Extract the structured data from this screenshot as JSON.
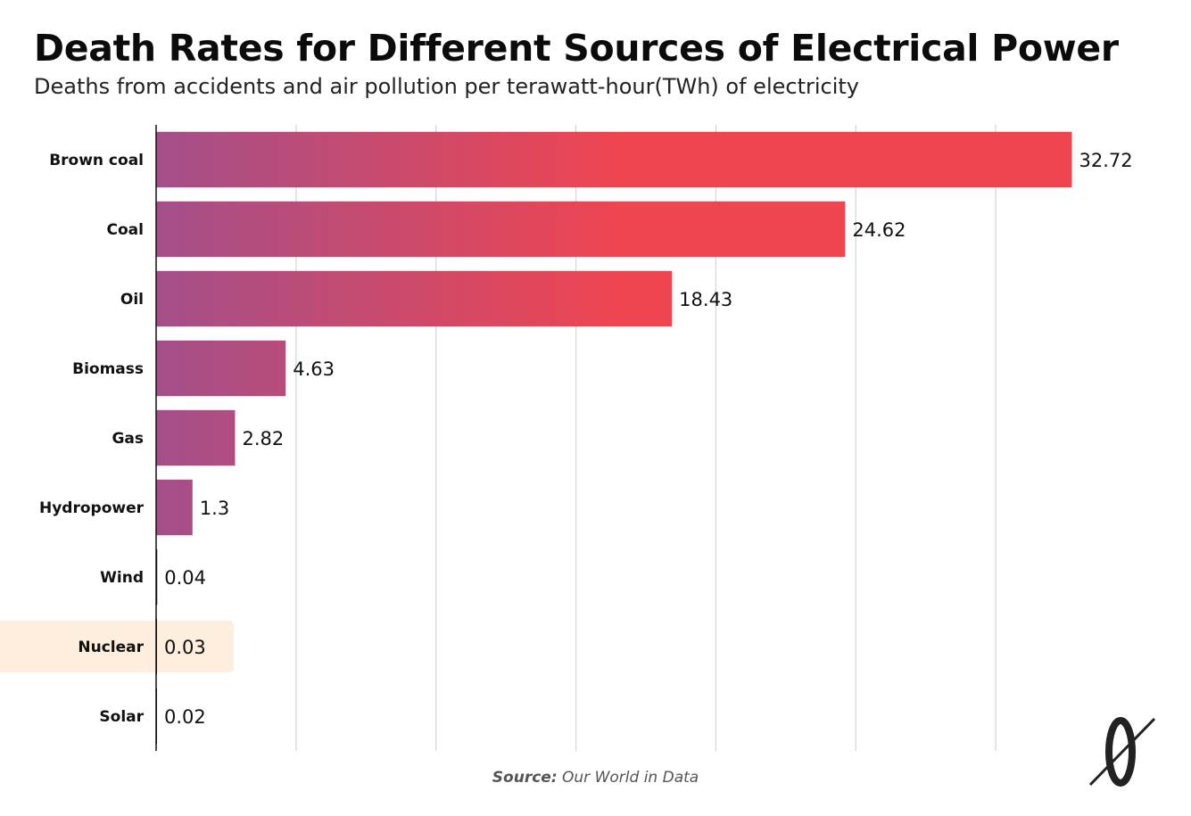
{
  "header": {
    "title": "Death Rates for Different Sources of Electrical Power",
    "subtitle": "Deaths from accidents and air pollution per terawatt-hour(TWh) of electricity"
  },
  "footer": {
    "source_label": "Source:",
    "source_text": "Our World in Data"
  },
  "logo": {
    "glyph": "0"
  },
  "colors": {
    "bar_start": "#a44f8a",
    "bar_end": "#ef4550",
    "highlight_bg": "#fdeedd",
    "gridline": "#d4d4d4",
    "axis": "#111111"
  },
  "chart_data": {
    "type": "bar",
    "orientation": "horizontal",
    "title": "Death Rates for Different Sources of Electrical Power",
    "subtitle": "Deaths from accidents and air pollution per terawatt-hour(TWh) of electricity",
    "categories": [
      "Brown coal",
      "Coal",
      "Oil",
      "Biomass",
      "Gas",
      "Hydropower",
      "Wind",
      "Nuclear",
      "Solar"
    ],
    "values": [
      32.72,
      24.62,
      18.43,
      4.63,
      2.82,
      1.3,
      0.04,
      0.03,
      0.02
    ],
    "value_labels": [
      "32.72",
      "24.62",
      "18.43",
      "4.63",
      "2.82",
      "1.3",
      "0.04",
      "0.03",
      "0.02"
    ],
    "highlighted": "Nuclear",
    "xlim": [
      0,
      35
    ],
    "x_gridlines": [
      5,
      10,
      15,
      20,
      25,
      30
    ],
    "grid": true,
    "legend": "none"
  }
}
